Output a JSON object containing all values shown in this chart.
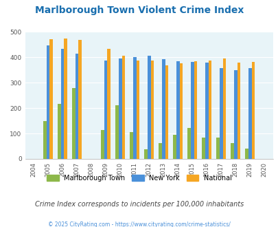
{
  "title": "Marlborough Town Violent Crime Index",
  "title_color": "#1a6faf",
  "subtitle": "Crime Index corresponds to incidents per 100,000 inhabitants",
  "footer": "© 2025 CityRating.com - https://www.cityrating.com/crime-statistics/",
  "years": [
    2005,
    2006,
    2007,
    2009,
    2010,
    2011,
    2012,
    2013,
    2014,
    2015,
    2016,
    2017,
    2018,
    2019
  ],
  "marlborough": [
    148,
    217,
    278,
    113,
    210,
    105,
    38,
    62,
    95,
    121,
    83,
    83,
    62,
    40
  ],
  "new_york": [
    446,
    434,
    414,
    388,
    395,
    400,
    406,
    392,
    385,
    382,
    378,
    357,
    350,
    358
  ],
  "national": [
    470,
    474,
    468,
    432,
    405,
    387,
    387,
    368,
    376,
    383,
    386,
    395,
    379,
    381
  ],
  "color_marlborough": "#8db84a",
  "color_new_york": "#4a90d9",
  "color_national": "#f5a623",
  "bg_color": "#e8f4f8",
  "ylim": [
    0,
    500
  ],
  "yticks": [
    0,
    100,
    200,
    300,
    400,
    500
  ],
  "all_years": [
    2004,
    2005,
    2006,
    2007,
    2008,
    2009,
    2010,
    2011,
    2012,
    2013,
    2014,
    2015,
    2016,
    2017,
    2018,
    2019,
    2020
  ],
  "legend_labels": [
    "Marlborough Town",
    "New York",
    "National"
  ],
  "subtitle_color": "#444444",
  "footer_color": "#4a90d9"
}
